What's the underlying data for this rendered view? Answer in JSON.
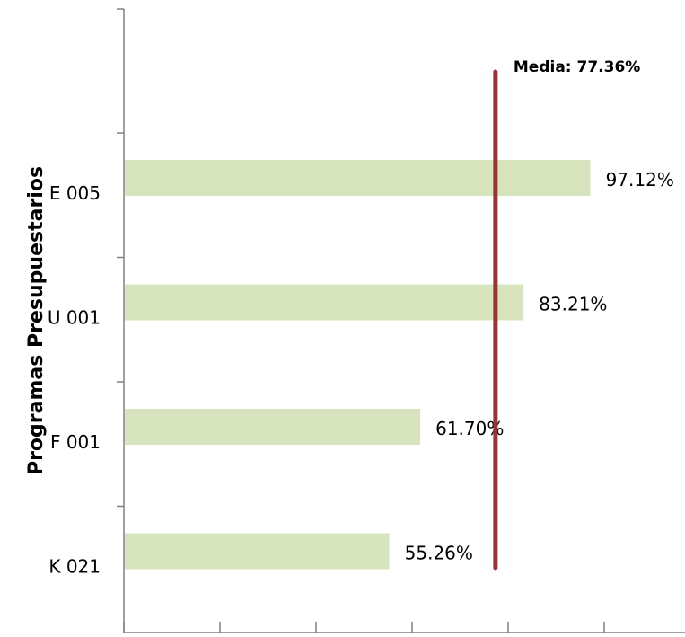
{
  "chart_data": {
    "type": "bar",
    "orientation": "horizontal",
    "categories": [
      "E 005",
      "U 001",
      "F 001",
      "K 021"
    ],
    "values": [
      97.12,
      83.21,
      61.7,
      55.26
    ],
    "value_labels": [
      "97.12%",
      "83.21%",
      "61.70%",
      "55.26%"
    ],
    "ylabel": "Programas Presupuestarios",
    "xlim": [
      0,
      120
    ],
    "x_ticks": [
      0,
      20,
      40,
      60,
      80,
      100,
      120
    ],
    "bar_color": "#d7e4bd",
    "mean": {
      "value": 77.36,
      "label": "Media: 77.36%",
      "color": "#943634"
    },
    "grid": false
  }
}
